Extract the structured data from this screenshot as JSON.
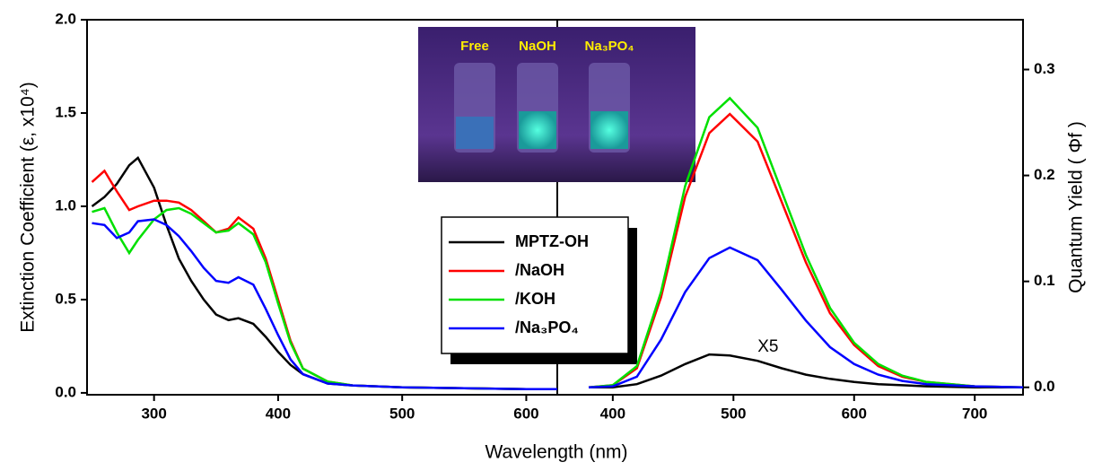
{
  "chart_data": [
    {
      "type": "line",
      "x_label": "Wavelength (nm)",
      "y_label": "Extinction Coefficient (ε, x10⁴)",
      "xlim": [
        246,
        625
      ],
      "xticks": [
        300,
        400,
        500,
        600
      ],
      "ylim": [
        -0.01,
        2.0
      ],
      "yticks": [
        {
          "value": 0,
          "label": "0.0"
        },
        0.5,
        {
          "value": 1,
          "label": "1.0"
        },
        1.5,
        {
          "value": 2,
          "label": "2.0"
        }
      ],
      "legend": "center",
      "x": [
        250,
        260,
        270,
        280,
        287,
        300,
        310,
        320,
        330,
        340,
        350,
        360,
        368,
        380,
        390,
        400,
        410,
        420,
        440,
        460,
        500,
        550,
        600,
        625
      ],
      "series": [
        {
          "name": "MPTZ-OH",
          "color": "#000000",
          "values": [
            1.0,
            1.05,
            1.12,
            1.22,
            1.26,
            1.1,
            0.9,
            0.72,
            0.6,
            0.5,
            0.42,
            0.39,
            0.4,
            0.37,
            0.3,
            0.22,
            0.15,
            0.1,
            0.05,
            0.04,
            0.03,
            0.025,
            0.02,
            0.02
          ]
        },
        {
          "name": "/NaOH",
          "color": "#ff0000",
          "values": [
            1.13,
            1.19,
            1.08,
            0.98,
            1.0,
            1.03,
            1.03,
            1.02,
            0.98,
            0.92,
            0.86,
            0.88,
            0.94,
            0.88,
            0.72,
            0.5,
            0.28,
            0.13,
            0.06,
            0.04,
            0.03,
            0.025,
            0.02,
            0.02
          ]
        },
        {
          "name": "/KOH",
          "color": "#00e000",
          "values": [
            0.97,
            0.99,
            0.86,
            0.75,
            0.82,
            0.93,
            0.98,
            0.99,
            0.96,
            0.91,
            0.86,
            0.87,
            0.91,
            0.85,
            0.7,
            0.48,
            0.27,
            0.13,
            0.06,
            0.04,
            0.03,
            0.025,
            0.02,
            0.02
          ]
        },
        {
          "name": "/Na₃PO₄",
          "color": "#0000ff",
          "values": [
            0.91,
            0.9,
            0.83,
            0.86,
            0.92,
            0.93,
            0.9,
            0.84,
            0.76,
            0.67,
            0.6,
            0.59,
            0.62,
            0.58,
            0.45,
            0.31,
            0.18,
            0.1,
            0.05,
            0.04,
            0.03,
            0.025,
            0.02,
            0.02
          ]
        }
      ]
    },
    {
      "type": "line",
      "y2_label": "Quantum Yield ( Φf )",
      "annotation": "X5",
      "xlim": [
        354,
        740
      ],
      "xticks": [
        400,
        500,
        600,
        700
      ],
      "y2lim": [
        -0.007,
        0.347
      ],
      "y2ticks": [
        {
          "value": 0,
          "label": "0.0"
        },
        0.1,
        0.2,
        0.3
      ],
      "x": [
        380,
        400,
        420,
        440,
        460,
        480,
        497,
        520,
        540,
        560,
        580,
        600,
        620,
        640,
        660,
        700,
        740
      ],
      "series": [
        {
          "color": "#000000",
          "axis": "y2",
          "values": [
            0.0,
            0.0,
            0.003,
            0.011,
            0.022,
            0.031,
            0.03,
            0.025,
            0.018,
            0.012,
            0.008,
            0.005,
            0.003,
            0.002,
            0.001,
            0.0,
            0.0
          ]
        },
        {
          "color": "#ff0000",
          "axis": "y2",
          "values": [
            0.0,
            0.002,
            0.018,
            0.085,
            0.18,
            0.24,
            0.258,
            0.232,
            0.175,
            0.118,
            0.07,
            0.04,
            0.02,
            0.01,
            0.005,
            0.001,
            0.0
          ]
        },
        {
          "color": "#00e000",
          "axis": "y2",
          "values": [
            0.0,
            0.002,
            0.02,
            0.09,
            0.19,
            0.255,
            0.273,
            0.245,
            0.185,
            0.125,
            0.075,
            0.042,
            0.022,
            0.011,
            0.005,
            0.001,
            0.0
          ]
        },
        {
          "color": "#0000ff",
          "axis": "y2",
          "values": [
            0.0,
            0.001,
            0.01,
            0.045,
            0.09,
            0.122,
            0.132,
            0.12,
            0.092,
            0.063,
            0.038,
            0.022,
            0.012,
            0.006,
            0.003,
            0.001,
            0.0
          ]
        }
      ]
    }
  ],
  "inset": {
    "labels": [
      "Free",
      "NaOH",
      "Na₃PO₄"
    ]
  }
}
